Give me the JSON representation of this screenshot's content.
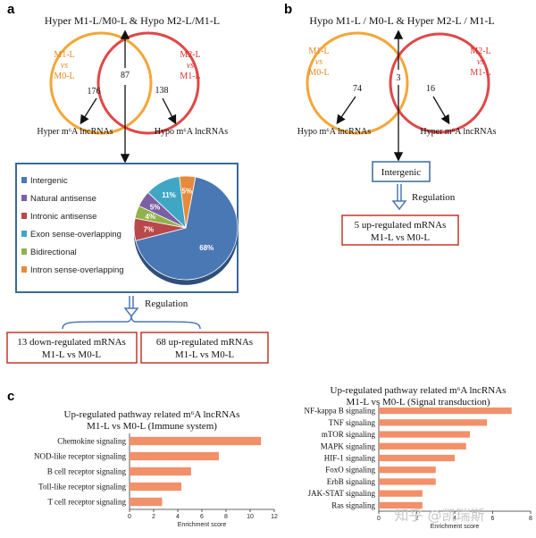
{
  "panel_a": {
    "letter": "a",
    "title": "Hyper M1-L/M0-L & Hypo M2-L/M1-L",
    "left_circle": {
      "line1": "M1-L",
      "line2": "vs",
      "line3": "M0-L",
      "count": "176"
    },
    "right_circle": {
      "line1": "M2-L",
      "line2": "vs",
      "line3": "M1-L",
      "count": "138"
    },
    "overlap": "87",
    "left_caption": "Hyper m⁶A lncRNAs",
    "right_caption": "Hypo m⁶A lncRNAs",
    "legend": [
      "Intergenic",
      "Natural antisense",
      "Intronic antisense",
      "Exon sense-overlapping",
      "Bidirectional",
      "Intron sense-overlapping"
    ],
    "regulation": "Regulation",
    "box_left": {
      "line1": "13 down-regulated mRNAs",
      "line2": "M1-L vs M0-L"
    },
    "box_right": {
      "line1": "68 up-regulated mRNAs",
      "line2": "M1-L vs M0-L"
    }
  },
  "panel_b": {
    "letter": "b",
    "title": "Hypo M1-L / M0-L & Hyper M2-L / M1-L",
    "left_circle": {
      "line1": "M1-L",
      "line2": "vs",
      "line3": "M0-L",
      "count": "74"
    },
    "right_circle": {
      "line1": "M2-L",
      "line2": "vs",
      "line3": "M1-L",
      "count": "16"
    },
    "overlap": "3",
    "left_caption": "Hypo m⁶A lncRNAs",
    "right_caption": "Hyper m⁶A lncRNAs",
    "box_top": "Intergenic",
    "regulation": "Regulation",
    "box_bottom": {
      "line1": "5 up-regulated mRNAs",
      "line2": "M1-L vs M0-L"
    }
  },
  "panel_c": {
    "letter": "c"
  },
  "watermark": "知乎 @凯瑞斯",
  "colors": {
    "orange_circle": "#f4a638",
    "red_circle": "#e04848",
    "box_border": "#c0392b",
    "blue_box": "#3a6a9a",
    "bar": "#f2906a"
  },
  "chart_data": [
    {
      "type": "pie",
      "title": "",
      "categories": [
        "Intergenic",
        "Natural antisense",
        "Intronic antisense",
        "Exon sense-overlapping",
        "Bidirectional",
        "Intron sense-overlapping"
      ],
      "values": [
        68,
        5,
        7,
        11,
        4,
        5
      ],
      "labels": [
        "68%",
        "5%",
        "7%",
        "11%",
        "4%",
        "5%"
      ],
      "colors": [
        "#4a78b5",
        "#7b5fa3",
        "#b9484a",
        "#3fa7c4",
        "#8fb34a",
        "#e88a3c"
      ]
    },
    {
      "type": "bar",
      "orientation": "horizontal",
      "title": "Up-regulated pathway related m⁶A lncRNAs",
      "subtitle": "M1-L vs M0-L (Immune system)",
      "categories": [
        "Chemokine signaling",
        "NOD-like receptor signaling",
        "B cell receptor signaling",
        "Toll-like receptor signaling",
        "T cell receptor signaling"
      ],
      "values": [
        10.9,
        7.4,
        5.1,
        4.3,
        2.7
      ],
      "xlabel": "Enrichment score",
      "xlim": [
        0,
        12
      ],
      "xticks": [
        "0",
        "2",
        "4",
        "6",
        "8",
        "10",
        "12"
      ]
    },
    {
      "type": "bar",
      "orientation": "horizontal",
      "title": "Up-regulated pathway related m⁶A lncRNAs",
      "subtitle": "M1-L vs M0-L (Signal transduction)",
      "categories": [
        "NF-kappa B signaling",
        "TNF signaling",
        "mTOR signaling",
        "MAPK signaling",
        "HIF-1 signaling",
        "FoxO signaling",
        "ErbB signaling",
        "JAK-STAT signaling",
        "Ras signaling"
      ],
      "values": [
        7.0,
        5.7,
        4.8,
        4.6,
        4.0,
        3.0,
        3.0,
        2.3,
        2.3
      ],
      "xlabel": "Enrichment score",
      "xlim": [
        0,
        8
      ],
      "xticks": [
        "0",
        "2",
        "4",
        "6",
        "8"
      ]
    }
  ]
}
